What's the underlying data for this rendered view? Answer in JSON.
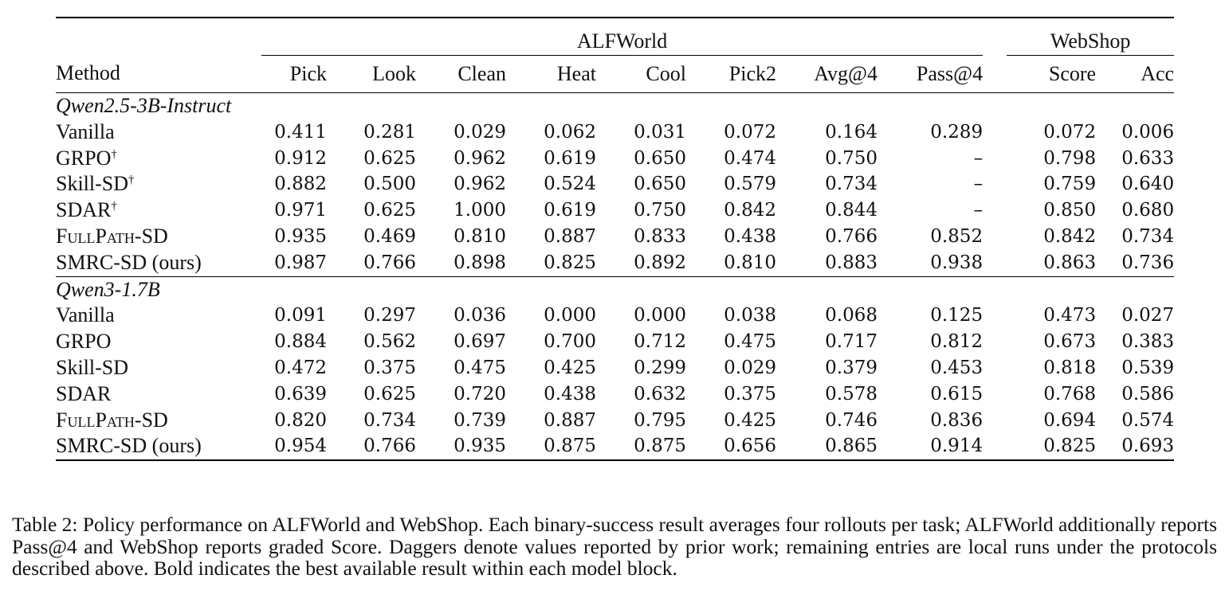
{
  "table": {
    "group_headers": {
      "alfworld": "ALFWorld",
      "webshop": "WebShop"
    },
    "columns": {
      "method": "Method",
      "alfworld": [
        "Pick",
        "Look",
        "Clean",
        "Heat",
        "Cool",
        "Pick2",
        "Avg@4",
        "Pass@4"
      ],
      "webshop": [
        "Score",
        "Acc"
      ]
    },
    "sections": [
      {
        "title": "Qwen2.5-3B-Instruct",
        "rows": [
          {
            "method": "Vanilla",
            "dagger": "",
            "sc": false,
            "values": [
              "0.411",
              "0.281",
              "0.029",
              "0.062",
              "0.031",
              "0.072",
              "0.164",
              "0.289",
              "0.072",
              "0.006"
            ],
            "bold": []
          },
          {
            "method": "GRPO",
            "dagger": "†",
            "sc": false,
            "values": [
              "0.912",
              "0.625",
              "0.962",
              "0.619",
              "0.650",
              "0.474",
              "0.750",
              "–",
              "0.798",
              "0.633"
            ],
            "bold": []
          },
          {
            "method": "Skill-SD",
            "dagger": "†",
            "sc": false,
            "values": [
              "0.882",
              "0.500",
              "0.962",
              "0.524",
              "0.650",
              "0.579",
              "0.734",
              "–",
              "0.759",
              "0.640"
            ],
            "bold": []
          },
          {
            "method": "SDAR",
            "dagger": "†",
            "sc": false,
            "values": [
              "0.971",
              "0.625",
              "1.000",
              "0.619",
              "0.750",
              "0.842",
              "0.844",
              "–",
              "0.850",
              "0.680"
            ],
            "bold": [
              2,
              5
            ]
          },
          {
            "method": "FullPath-SD",
            "dagger": "",
            "sc": true,
            "values": [
              "0.935",
              "0.469",
              "0.810",
              "0.887",
              "0.833",
              "0.438",
              "0.766",
              "0.852",
              "0.842",
              "0.734"
            ],
            "bold": [
              3
            ]
          },
          {
            "method": "SMRC-SD (ours)",
            "dagger": "",
            "sc": false,
            "values": [
              "0.987",
              "0.766",
              "0.898",
              "0.825",
              "0.892",
              "0.810",
              "0.883",
              "0.938",
              "0.863",
              "0.736"
            ],
            "bold": [
              0,
              1,
              4,
              6,
              7,
              8,
              9
            ]
          }
        ]
      },
      {
        "title": "Qwen3-1.7B",
        "rows": [
          {
            "method": "Vanilla",
            "dagger": "",
            "sc": false,
            "values": [
              "0.091",
              "0.297",
              "0.036",
              "0.000",
              "0.000",
              "0.038",
              "0.068",
              "0.125",
              "0.473",
              "0.027"
            ],
            "bold": []
          },
          {
            "method": "GRPO",
            "dagger": "",
            "sc": false,
            "values": [
              "0.884",
              "0.562",
              "0.697",
              "0.700",
              "0.712",
              "0.475",
              "0.717",
              "0.812",
              "0.673",
              "0.383"
            ],
            "bold": []
          },
          {
            "method": "Skill-SD",
            "dagger": "",
            "sc": false,
            "values": [
              "0.472",
              "0.375",
              "0.475",
              "0.425",
              "0.299",
              "0.029",
              "0.379",
              "0.453",
              "0.818",
              "0.539"
            ],
            "bold": []
          },
          {
            "method": "SDAR",
            "dagger": "",
            "sc": false,
            "values": [
              "0.639",
              "0.625",
              "0.720",
              "0.438",
              "0.632",
              "0.375",
              "0.578",
              "0.615",
              "0.768",
              "0.586"
            ],
            "bold": []
          },
          {
            "method": "FullPath-SD",
            "dagger": "",
            "sc": true,
            "values": [
              "0.820",
              "0.734",
              "0.739",
              "0.887",
              "0.795",
              "0.425",
              "0.746",
              "0.836",
              "0.694",
              "0.574"
            ],
            "bold": [
              3
            ]
          },
          {
            "method": "SMRC-SD (ours)",
            "dagger": "",
            "sc": false,
            "values": [
              "0.954",
              "0.766",
              "0.935",
              "0.875",
              "0.875",
              "0.656",
              "0.865",
              "0.914",
              "0.825",
              "0.693"
            ],
            "bold": [
              0,
              1,
              2,
              4,
              5,
              6,
              7,
              8,
              9
            ]
          }
        ]
      }
    ]
  },
  "caption": "Table 2: Policy performance on ALFWorld and WebShop. Each binary-success result averages four rollouts per task; ALFWorld additionally reports Pass@4 and WebShop reports graded Score. Daggers denote values reported by prior work; remaining entries are local runs under the protocols described above. Bold indicates the best available result within each model block."
}
